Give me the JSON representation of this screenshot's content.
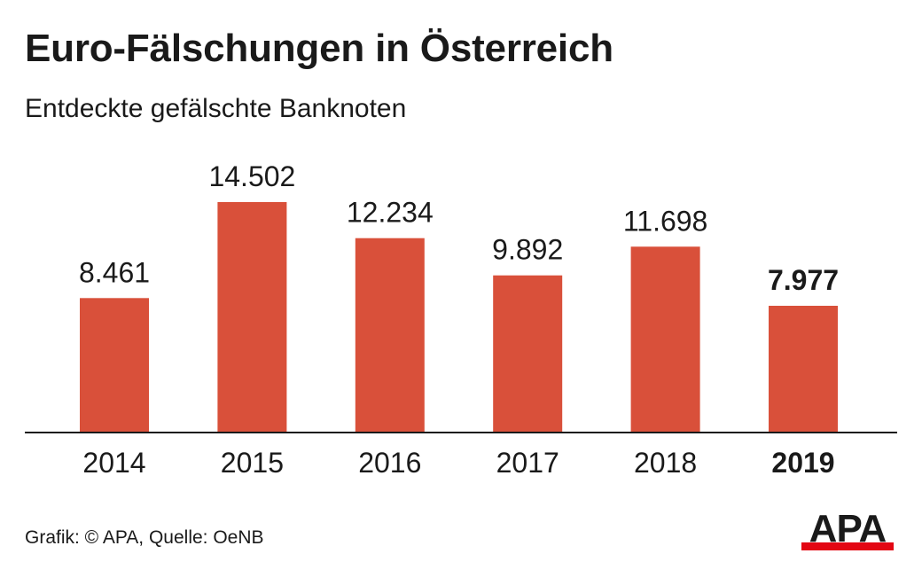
{
  "title": "Euro-Fälschungen in Österreich",
  "subtitle": "Entdeckte gefälschte Banknoten",
  "footer": "Grafik: © APA, Quelle: OeNB",
  "logo": {
    "text": "APA",
    "colors": {
      "text": "#1a1a1a",
      "bar": "#e30613"
    }
  },
  "colors": {
    "bar": "#d9503a",
    "text": "#1a1a1a",
    "axis": "#1a1a1a",
    "background": "#ffffff"
  },
  "chart_data": {
    "type": "bar",
    "categories": [
      "2014",
      "2015",
      "2016",
      "2017",
      "2018",
      "2019"
    ],
    "values": [
      8461,
      14502,
      12234,
      9892,
      11698,
      7977
    ],
    "value_labels": [
      "8.461",
      "14.502",
      "12.234",
      "9.892",
      "11.698",
      "7.977"
    ],
    "highlight": "2019",
    "title": "Euro-Fälschungen in Österreich",
    "subtitle": "Entdeckte gefälschte Banknoten",
    "xlabel": "",
    "ylabel": "",
    "ylim": [
      0,
      14502
    ],
    "grid": false,
    "legend": "none"
  }
}
